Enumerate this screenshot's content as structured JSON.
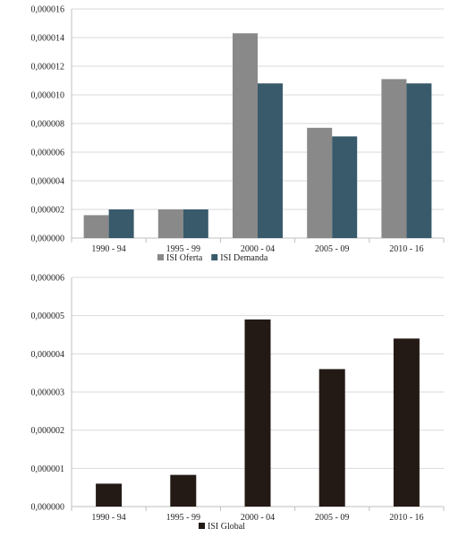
{
  "chart_data": [
    {
      "type": "bar",
      "categories": [
        "1990 - 94",
        "1995 - 99",
        "2000 - 04",
        "2005 - 09",
        "2010 - 16"
      ],
      "series": [
        {
          "name": "ISI Oferta",
          "values": [
            1.6e-06,
            2e-06,
            1.43e-05,
            7.7e-06,
            1.11e-05
          ],
          "color": "#898989"
        },
        {
          "name": "ISI Demanda",
          "values": [
            2e-06,
            2e-06,
            1.08e-05,
            7.1e-06,
            1.08e-05
          ],
          "color": "#385a6b"
        }
      ],
      "yticks": [
        "0,000000",
        "0,000002",
        "0,000004",
        "0,000006",
        "0,000008",
        "0,000010",
        "0,000012",
        "0,000014",
        "0,000016"
      ],
      "ylim": [
        0,
        1.6e-05
      ],
      "grid": true,
      "legend": "bottom-center"
    },
    {
      "type": "bar",
      "categories": [
        "1990 - 94",
        "1995 - 99",
        "2000 - 04",
        "2005 - 09",
        "2010 - 16"
      ],
      "series": [
        {
          "name": "ISI Global",
          "values": [
            6e-07,
            8.3e-07,
            4.9e-06,
            3.6e-06,
            4.4e-06
          ],
          "color": "#231a16"
        }
      ],
      "yticks": [
        "0,000000",
        "0,000001",
        "0,000002",
        "0,000003",
        "0,000004",
        "0,000005",
        "0,000006"
      ],
      "ylim": [
        0,
        6e-06
      ],
      "grid": true,
      "legend": "bottom-center"
    }
  ]
}
